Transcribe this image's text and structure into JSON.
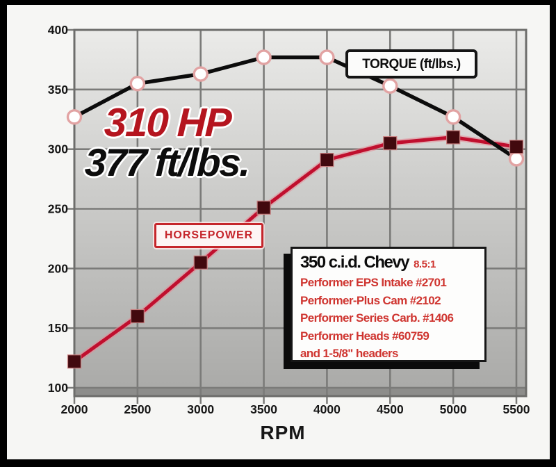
{
  "headline": {
    "hp": "310 HP",
    "torque": "377 ft/lbs."
  },
  "spec_box": {
    "title": "350 c.i.d. Chevy",
    "compression": "8.5:1",
    "lines": [
      "Performer EPS Intake #2701",
      "Performer-Plus Cam #2102",
      "Performer Series Carb. #1406",
      "Performer Heads #60759",
      "and 1-5/8\" headers"
    ]
  },
  "axis": {
    "x_label": "RPM"
  },
  "colors": {
    "headline_red": "#b5151f",
    "spec_red": "#cf3530",
    "grid_gray": "#7b7b79",
    "border_gray": "#6d6d6b",
    "plot_bg_top": "#ebebe9",
    "plot_bg_bottom": "#a9a9a7",
    "sub_band_gray": "#8d8d8b",
    "tick_text": "#161616"
  },
  "chart_data": {
    "type": "line",
    "x": [
      2000,
      2500,
      3000,
      3500,
      4000,
      4500,
      5000,
      5500
    ],
    "series": [
      {
        "name": "TORQUE (ft/lbs.)",
        "values": [
          327,
          355,
          363,
          377,
          377,
          353,
          327,
          292
        ],
        "color": "#0c0c0c",
        "marker": "circle",
        "marker_fill": "#ffffff",
        "marker_stroke": "#e2a3a3"
      },
      {
        "name": "HORSEPOWER",
        "values": [
          122,
          160,
          205,
          251,
          291,
          305,
          310,
          302
        ],
        "color": "#c00f2e",
        "glow": "#e58a96",
        "marker": "square",
        "marker_fill": "#42090e",
        "marker_stroke": "#c97f7f"
      }
    ],
    "title": "",
    "xlabel": "RPM",
    "ylabel": "",
    "xlim": [
      2000,
      5500
    ],
    "ylim": [
      100,
      400
    ],
    "xticks": [
      2000,
      2500,
      3000,
      3500,
      4000,
      4500,
      5000,
      5500
    ],
    "yticks": [
      400,
      350,
      300,
      250,
      200,
      150,
      100
    ],
    "grid": true,
    "legend_position": "inline-boxes"
  }
}
